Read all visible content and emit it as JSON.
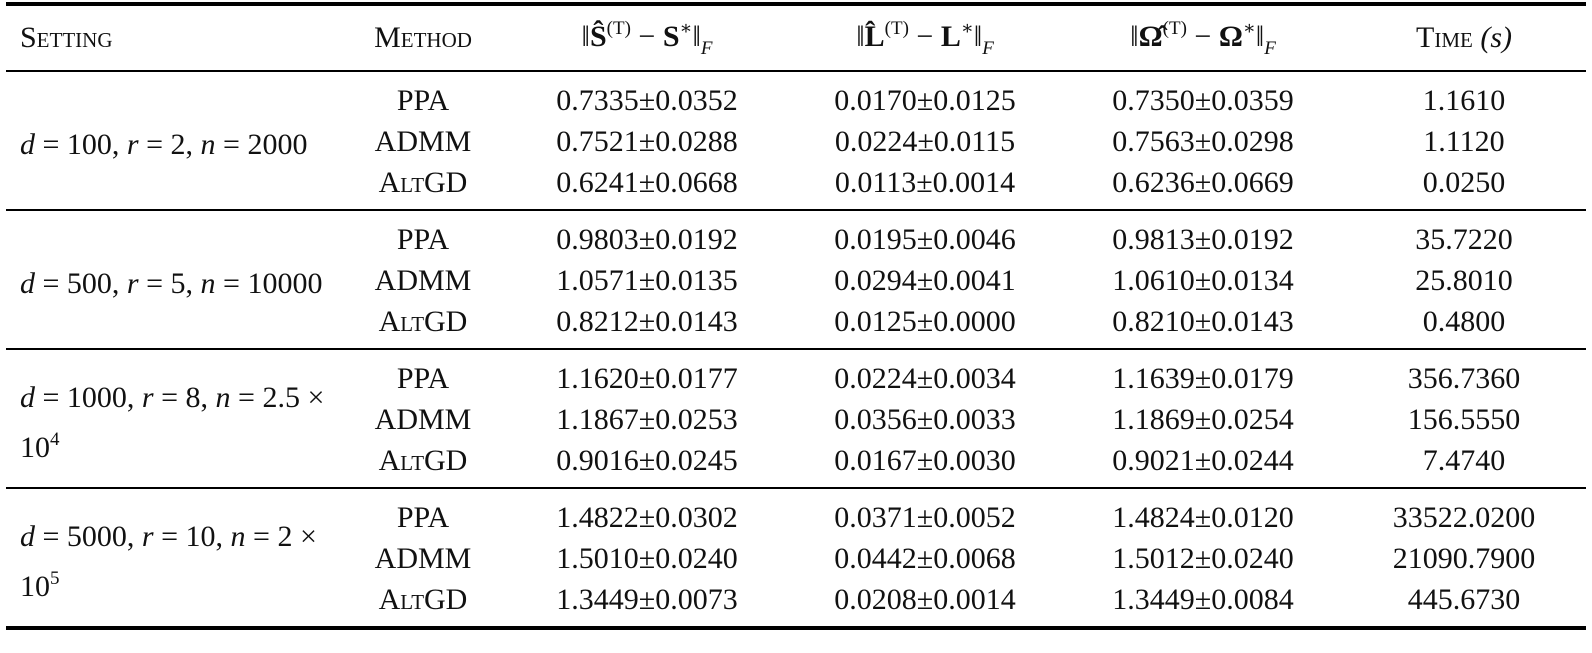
{
  "table": {
    "header": [
      [
        {
          "t": "Setting"
        }
      ],
      [
        {
          "t": "Method"
        }
      ],
      [
        {
          "t": "‖"
        },
        {
          "t": "Ŝ",
          "s": "b"
        },
        {
          "t": "(T)",
          "s": "sup"
        },
        {
          "t": " − "
        },
        {
          "t": "S",
          "s": "b"
        },
        {
          "t": "∗",
          "s": "sup"
        },
        {
          "t": "‖"
        },
        {
          "t": "F",
          "s": "sub"
        }
      ],
      [
        {
          "t": "‖"
        },
        {
          "t": "L̂",
          "s": "b"
        },
        {
          "t": "(T)",
          "s": "sup"
        },
        {
          "t": " − "
        },
        {
          "t": "L",
          "s": "b"
        },
        {
          "t": "∗",
          "s": "sup"
        },
        {
          "t": "‖"
        },
        {
          "t": "F",
          "s": "sub"
        }
      ],
      [
        {
          "t": "‖"
        },
        {
          "t": "Ω̂",
          "s": "b"
        },
        {
          "t": "(T)",
          "s": "sup"
        },
        {
          "t": " − "
        },
        {
          "t": "Ω",
          "s": "b"
        },
        {
          "t": "∗",
          "s": "sup"
        },
        {
          "t": "‖"
        },
        {
          "t": "F",
          "s": "sub"
        }
      ],
      [
        {
          "t": "Time "
        },
        {
          "t": "(s)",
          "s": "i"
        }
      ]
    ],
    "groups": [
      {
        "setting": [
          {
            "t": "d",
            "s": "i"
          },
          {
            "t": " = 100, "
          },
          {
            "t": "r",
            "s": "i"
          },
          {
            "t": " = 2, "
          },
          {
            "t": "n",
            "s": "i"
          },
          {
            "t": " = 2000"
          }
        ],
        "rows": [
          [
            "PPA",
            "0.7335±0.0352",
            "0.0170±0.0125",
            "0.7350±0.0359",
            "1.1610"
          ],
          [
            "ADMM",
            "0.7521±0.0288",
            "0.0224±0.0115",
            "0.7563±0.0298",
            "1.1120"
          ],
          [
            "AltGD",
            "0.6241±0.0668",
            "0.0113±0.0014",
            "0.6236±0.0669",
            "0.0250"
          ]
        ]
      },
      {
        "setting": [
          {
            "t": "d",
            "s": "i"
          },
          {
            "t": " = 500, "
          },
          {
            "t": "r",
            "s": "i"
          },
          {
            "t": " = 5, "
          },
          {
            "t": "n",
            "s": "i"
          },
          {
            "t": " = 10000"
          }
        ],
        "rows": [
          [
            "PPA",
            "0.9803±0.0192",
            "0.0195±0.0046",
            "0.9813±0.0192",
            "35.7220"
          ],
          [
            "ADMM",
            "1.0571±0.0135",
            "0.0294±0.0041",
            "1.0610±0.0134",
            "25.8010"
          ],
          [
            "AltGD",
            "0.8212±0.0143",
            "0.0125±0.0000",
            "0.8210±0.0143",
            "0.4800"
          ]
        ]
      },
      {
        "setting": [
          {
            "t": "d",
            "s": "i"
          },
          {
            "t": " = 1000, "
          },
          {
            "t": "r",
            "s": "i"
          },
          {
            "t": " = 8, "
          },
          {
            "t": "n",
            "s": "i"
          },
          {
            "t": " = 2.5 × 10"
          },
          {
            "t": "4",
            "s": "sup"
          }
        ],
        "rows": [
          [
            "PPA",
            "1.1620±0.0177",
            "0.0224±0.0034",
            "1.1639±0.0179",
            "356.7360"
          ],
          [
            "ADMM",
            "1.1867±0.0253",
            "0.0356±0.0033",
            "1.1869±0.0254",
            "156.5550"
          ],
          [
            "AltGD",
            "0.9016±0.0245",
            "0.0167±0.0030",
            "0.9021±0.0244",
            "7.4740"
          ]
        ]
      },
      {
        "setting": [
          {
            "t": "d",
            "s": "i"
          },
          {
            "t": " = 5000, "
          },
          {
            "t": "r",
            "s": "i"
          },
          {
            "t": " = 10, "
          },
          {
            "t": "n",
            "s": "i"
          },
          {
            "t": " = 2 × 10"
          },
          {
            "t": "5",
            "s": "sup"
          }
        ],
        "rows": [
          [
            "PPA",
            "1.4822±0.0302",
            "0.0371±0.0052",
            "1.4824±0.0120",
            "33522.0200"
          ],
          [
            "ADMM",
            "1.5010±0.0240",
            "0.0442±0.0068",
            "1.5012±0.0240",
            "21090.7900"
          ],
          [
            "AltGD",
            "1.3449±0.0073",
            "0.0208±0.0014",
            "1.3449±0.0084",
            "445.6730"
          ]
        ]
      }
    ]
  }
}
